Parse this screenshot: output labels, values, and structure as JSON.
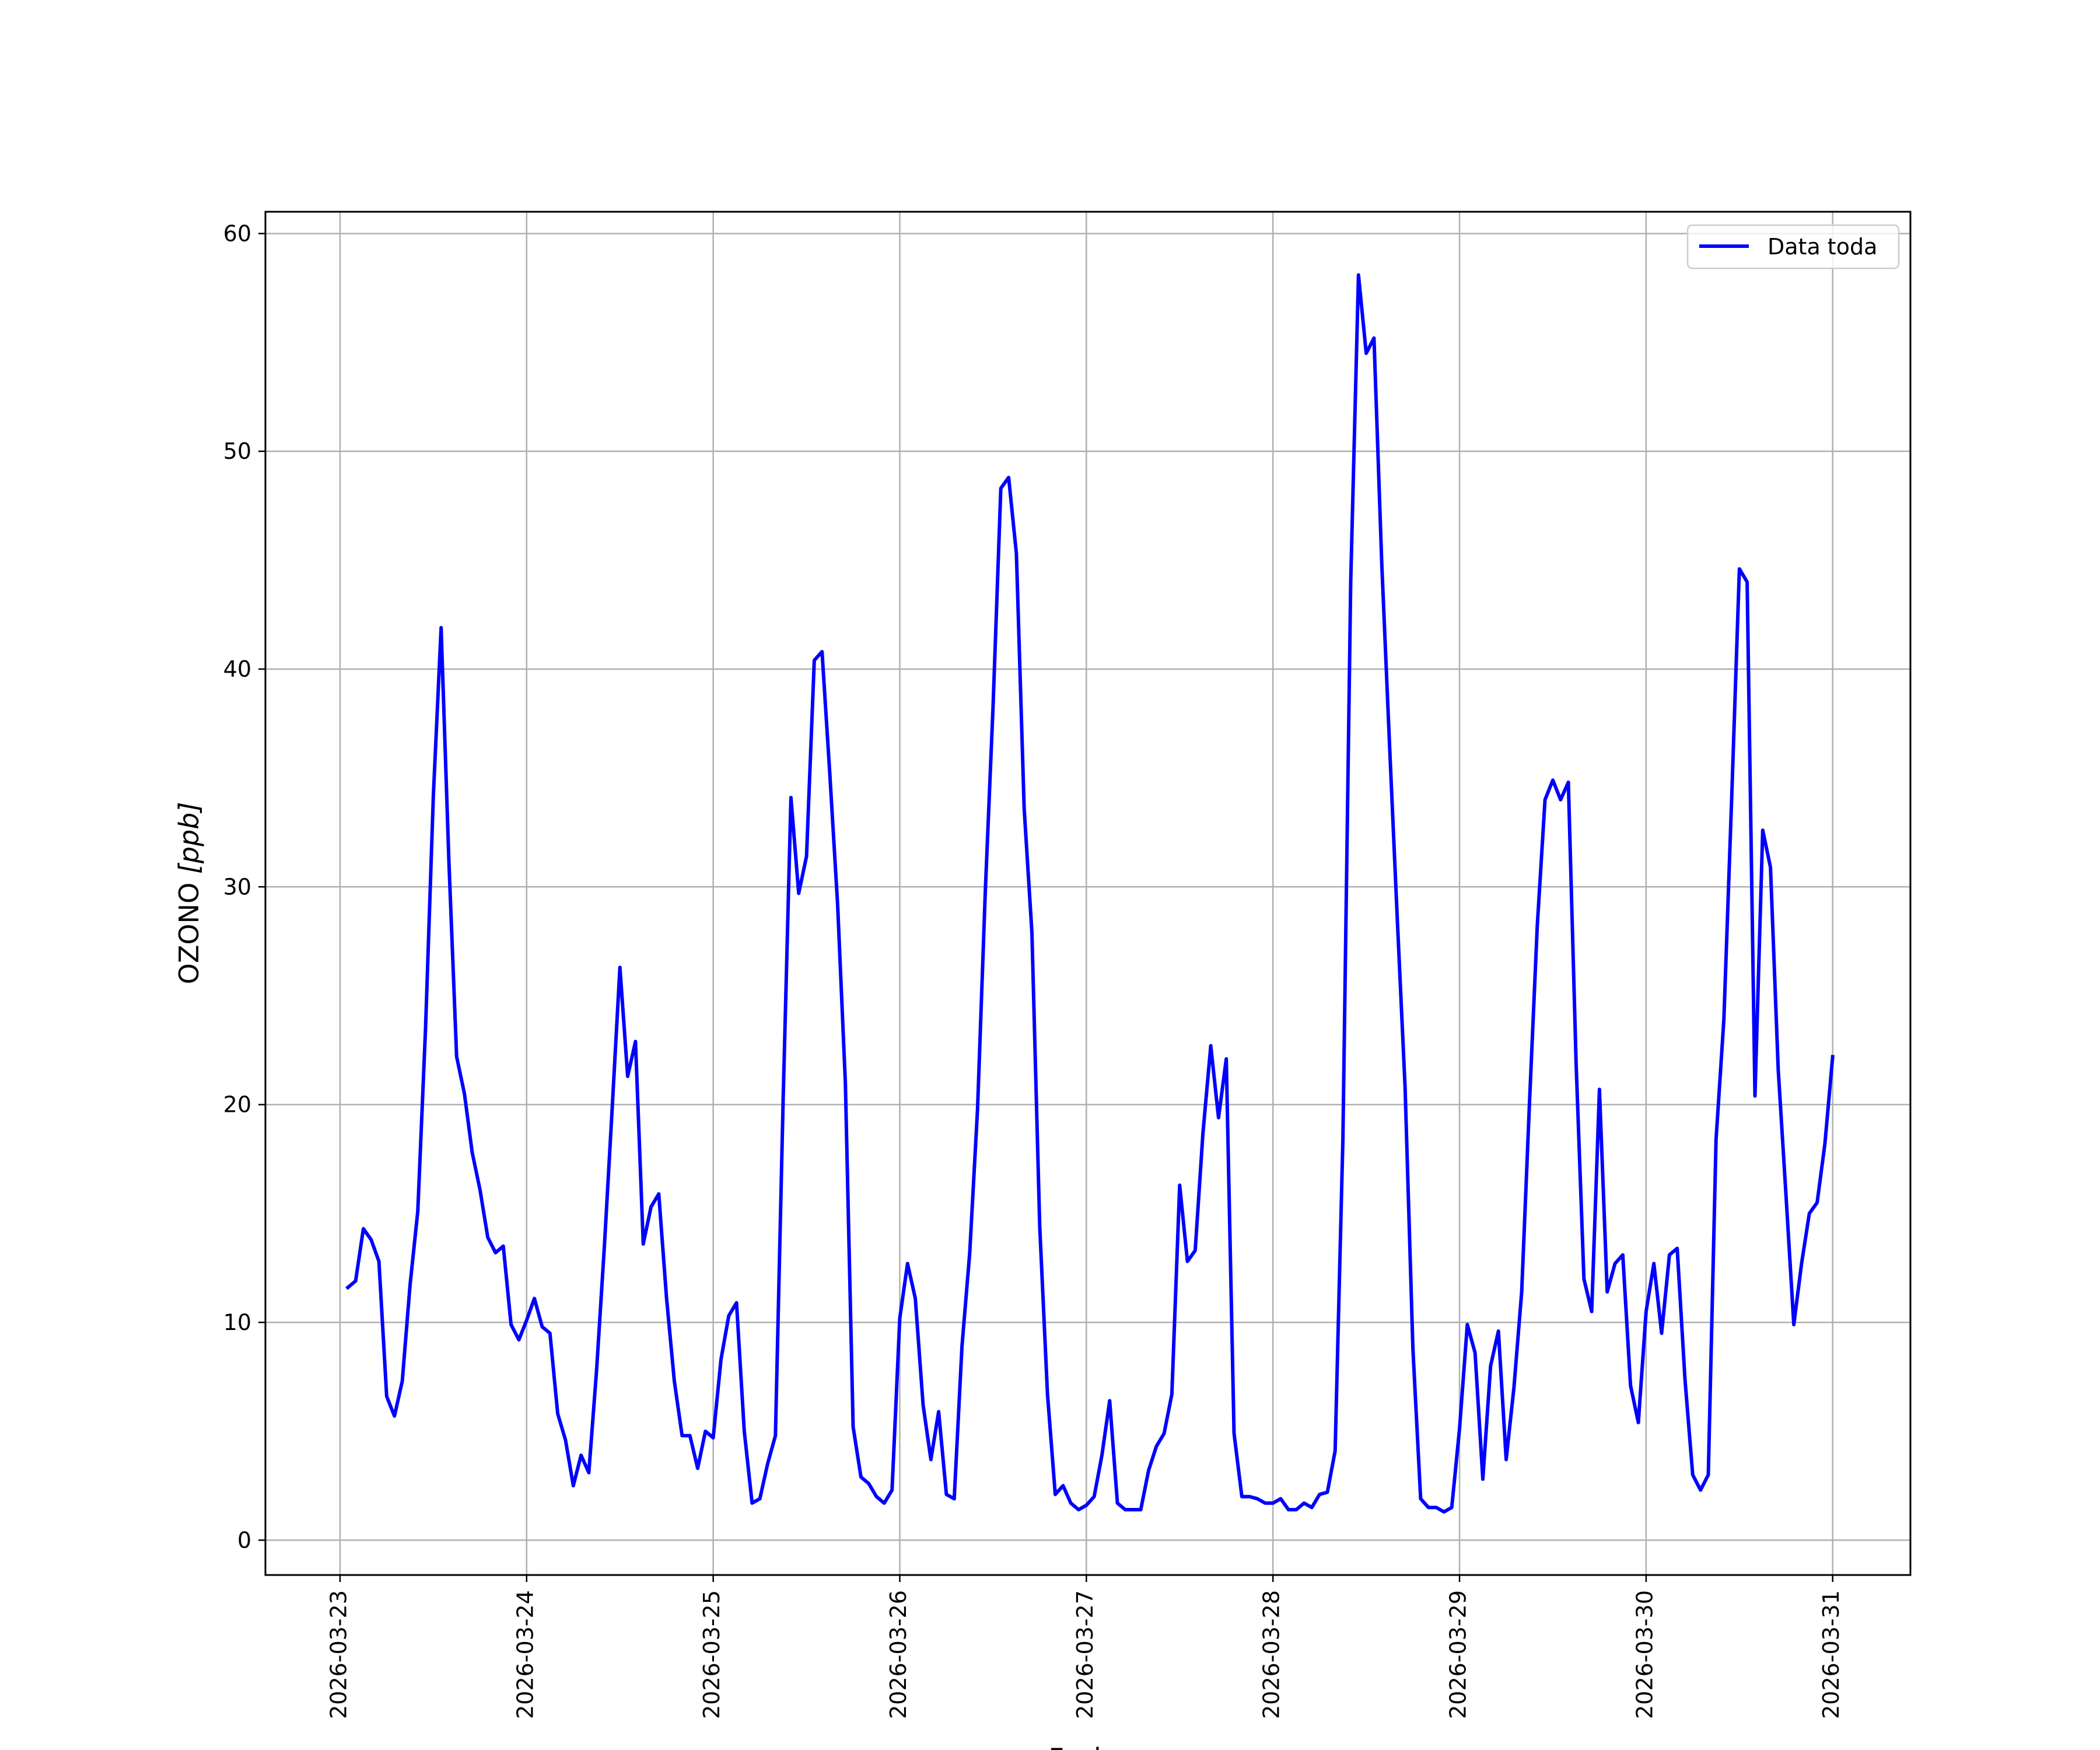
{
  "chart_data": {
    "type": "line",
    "xlabel": "Fecha",
    "ylabel_main": "OZONO ",
    "ylabel_unit": "[ppb]",
    "ylim": [
      -1.6,
      61
    ],
    "yticks": [
      0,
      10,
      20,
      30,
      40,
      50,
      60
    ],
    "xlim": [
      "2026-03-22T14:24",
      "2026-03-31T10:00"
    ],
    "xticks": [
      "2026-03-23",
      "2026-03-24",
      "2026-03-25",
      "2026-03-26",
      "2026-03-27",
      "2026-03-28",
      "2026-03-29",
      "2026-03-30",
      "2026-03-31"
    ],
    "grid": true,
    "legend_position": "top-right",
    "series": [
      {
        "name": "Data toda",
        "color": "#0000ff",
        "x": [
          "2026-03-23T01:00",
          "2026-03-23T02:00",
          "2026-03-23T03:00",
          "2026-03-23T04:00",
          "2026-03-23T05:00",
          "2026-03-23T06:00",
          "2026-03-23T07:00",
          "2026-03-23T08:00",
          "2026-03-23T09:00",
          "2026-03-23T10:00",
          "2026-03-23T11:00",
          "2026-03-23T12:00",
          "2026-03-23T13:00",
          "2026-03-23T14:00",
          "2026-03-23T15:00",
          "2026-03-23T16:00",
          "2026-03-23T17:00",
          "2026-03-23T18:00",
          "2026-03-23T19:00",
          "2026-03-23T20:00",
          "2026-03-23T21:00",
          "2026-03-23T22:00",
          "2026-03-23T23:00",
          "2026-03-24T00:00",
          "2026-03-24T01:00",
          "2026-03-24T02:00",
          "2026-03-24T03:00",
          "2026-03-24T04:00",
          "2026-03-24T05:00",
          "2026-03-24T06:00",
          "2026-03-24T07:00",
          "2026-03-24T08:00",
          "2026-03-24T09:00",
          "2026-03-24T10:00",
          "2026-03-24T11:00",
          "2026-03-24T12:00",
          "2026-03-24T13:00",
          "2026-03-24T14:00",
          "2026-03-24T15:00",
          "2026-03-24T16:00",
          "2026-03-24T17:00",
          "2026-03-24T18:00",
          "2026-03-24T19:00",
          "2026-03-24T20:00",
          "2026-03-24T21:00",
          "2026-03-24T22:00",
          "2026-03-24T23:00",
          "2026-03-25T00:00",
          "2026-03-25T01:00",
          "2026-03-25T02:00",
          "2026-03-25T03:00",
          "2026-03-25T04:00",
          "2026-03-25T05:00",
          "2026-03-25T06:00",
          "2026-03-25T07:00",
          "2026-03-25T08:00",
          "2026-03-25T09:00",
          "2026-03-25T10:00",
          "2026-03-25T11:00",
          "2026-03-25T12:00",
          "2026-03-25T13:00",
          "2026-03-25T14:00",
          "2026-03-25T15:00",
          "2026-03-25T16:00",
          "2026-03-25T17:00",
          "2026-03-25T18:00",
          "2026-03-25T19:00",
          "2026-03-25T20:00",
          "2026-03-25T21:00",
          "2026-03-25T22:00",
          "2026-03-25T23:00",
          "2026-03-26T00:00",
          "2026-03-26T01:00",
          "2026-03-26T02:00",
          "2026-03-26T03:00",
          "2026-03-26T04:00",
          "2026-03-26T05:00",
          "2026-03-26T06:00",
          "2026-03-26T07:00",
          "2026-03-26T08:00",
          "2026-03-26T09:00",
          "2026-03-26T10:00",
          "2026-03-26T11:00",
          "2026-03-26T12:00",
          "2026-03-26T13:00",
          "2026-03-26T14:00",
          "2026-03-26T15:00",
          "2026-03-26T16:00",
          "2026-03-26T17:00",
          "2026-03-26T18:00",
          "2026-03-26T19:00",
          "2026-03-26T20:00",
          "2026-03-26T21:00",
          "2026-03-26T22:00",
          "2026-03-26T23:00",
          "2026-03-27T00:00",
          "2026-03-27T01:00",
          "2026-03-27T02:00",
          "2026-03-27T03:00",
          "2026-03-27T04:00",
          "2026-03-27T05:00",
          "2026-03-27T06:00",
          "2026-03-27T07:00",
          "2026-03-27T08:00",
          "2026-03-27T09:00",
          "2026-03-27T10:00",
          "2026-03-27T11:00",
          "2026-03-27T12:00",
          "2026-03-27T13:00",
          "2026-03-27T14:00",
          "2026-03-27T15:00",
          "2026-03-27T16:00",
          "2026-03-27T17:00",
          "2026-03-27T18:00",
          "2026-03-27T19:00",
          "2026-03-27T20:00",
          "2026-03-27T21:00",
          "2026-03-27T22:00",
          "2026-03-27T23:00",
          "2026-03-28T00:00",
          "2026-03-28T01:00",
          "2026-03-28T02:00",
          "2026-03-28T03:00",
          "2026-03-28T04:00",
          "2026-03-28T05:00",
          "2026-03-28T06:00",
          "2026-03-28T07:00",
          "2026-03-28T08:00",
          "2026-03-28T09:00",
          "2026-03-28T10:00",
          "2026-03-28T11:00",
          "2026-03-28T12:00",
          "2026-03-28T13:00",
          "2026-03-28T14:00",
          "2026-03-28T15:00",
          "2026-03-28T16:00",
          "2026-03-28T17:00",
          "2026-03-28T18:00",
          "2026-03-28T19:00",
          "2026-03-28T20:00",
          "2026-03-28T21:00",
          "2026-03-28T22:00",
          "2026-03-28T23:00",
          "2026-03-29T00:00",
          "2026-03-29T01:00",
          "2026-03-29T02:00",
          "2026-03-29T03:00",
          "2026-03-29T04:00",
          "2026-03-29T05:00",
          "2026-03-29T06:00",
          "2026-03-29T07:00",
          "2026-03-29T08:00",
          "2026-03-29T09:00",
          "2026-03-29T10:00",
          "2026-03-29T11:00",
          "2026-03-29T12:00",
          "2026-03-29T13:00",
          "2026-03-29T14:00",
          "2026-03-29T15:00",
          "2026-03-29T16:00",
          "2026-03-29T17:00",
          "2026-03-29T18:00",
          "2026-03-29T19:00",
          "2026-03-29T20:00",
          "2026-03-29T21:00",
          "2026-03-29T22:00",
          "2026-03-29T23:00",
          "2026-03-30T00:00",
          "2026-03-30T01:00",
          "2026-03-30T02:00",
          "2026-03-30T03:00",
          "2026-03-30T04:00",
          "2026-03-30T05:00",
          "2026-03-30T06:00",
          "2026-03-30T07:00",
          "2026-03-30T08:00",
          "2026-03-30T09:00",
          "2026-03-30T10:00",
          "2026-03-30T11:00",
          "2026-03-30T12:00",
          "2026-03-30T13:00",
          "2026-03-30T14:00",
          "2026-03-30T15:00",
          "2026-03-30T16:00",
          "2026-03-30T17:00",
          "2026-03-30T18:00",
          "2026-03-30T19:00",
          "2026-03-30T20:00",
          "2026-03-30T21:00",
          "2026-03-30T22:00",
          "2026-03-30T23:00",
          "2026-03-31T00:00"
        ],
        "values": [
          11.6,
          11.9,
          14.3,
          13.8,
          12.8,
          6.6,
          5.7,
          7.3,
          11.7,
          15.1,
          23.5,
          34.2,
          41.9,
          31.2,
          22.2,
          20.5,
          17.8,
          16.1,
          13.9,
          13.2,
          13.5,
          9.9,
          9.2,
          10.1,
          11.1,
          9.8,
          9.5,
          5.8,
          4.6,
          2.5,
          3.9,
          3.1,
          7.8,
          13.5,
          19.8,
          26.3,
          21.3,
          22.9,
          13.6,
          15.3,
          15.9,
          11.1,
          7.3,
          4.8,
          4.8,
          3.3,
          5.0,
          4.7,
          8.3,
          10.3,
          10.9,
          5.0,
          1.7,
          1.9,
          3.5,
          4.8,
          20.3,
          34.1,
          29.7,
          31.4,
          40.4,
          40.8,
          35.2,
          29.2,
          21.0,
          5.2,
          2.9,
          2.6,
          2.0,
          1.7,
          2.3,
          10.2,
          12.7,
          11.1,
          6.2,
          3.7,
          5.9,
          2.1,
          1.9,
          8.9,
          13.2,
          19.8,
          29.8,
          38.3,
          48.3,
          48.8,
          45.3,
          33.6,
          27.9,
          14.4,
          6.7,
          2.1,
          2.5,
          1.7,
          1.4,
          1.6,
          2.0,
          3.9,
          6.4,
          1.7,
          1.4,
          1.4,
          1.4,
          3.2,
          4.3,
          4.9,
          6.7,
          16.3,
          12.8,
          13.3,
          18.7,
          22.7,
          19.4,
          22.1,
          4.9,
          2.0,
          2.0,
          1.9,
          1.7,
          1.7,
          1.9,
          1.4,
          1.4,
          1.7,
          1.5,
          2.1,
          2.2,
          4.1,
          18.4,
          44.0,
          58.1,
          54.5,
          55.2,
          44.8,
          36.5,
          28.5,
          20.8,
          8.8,
          1.9,
          1.5,
          1.5,
          1.3,
          1.5,
          5.1,
          9.9,
          8.6,
          2.8,
          8.0,
          9.6,
          3.7,
          7.0,
          11.4,
          20.1,
          28.2,
          34.0,
          34.9,
          34.0,
          34.8,
          21.9,
          12.0,
          10.5,
          20.7,
          11.4,
          12.7,
          13.1,
          7.1,
          5.4,
          10.5,
          12.7,
          9.5,
          13.1,
          13.4,
          7.4,
          3.0,
          2.3,
          3.0,
          18.4,
          23.9,
          34.0,
          44.6,
          44.0,
          20.4,
          32.6,
          30.9,
          21.6,
          15.8,
          9.9,
          12.7,
          15.0,
          15.5,
          18.2,
          22.2
        ]
      }
    ]
  }
}
